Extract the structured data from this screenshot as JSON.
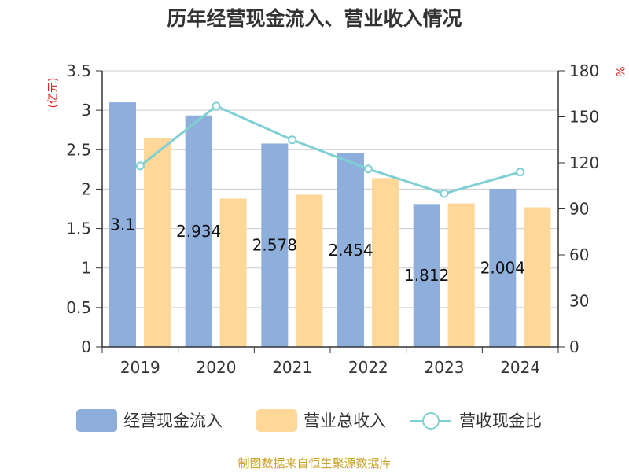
{
  "chart_data": {
    "type": "bar",
    "title": "历年经营现金流入、营业收入情况",
    "categories": [
      "2019",
      "2020",
      "2021",
      "2022",
      "2023",
      "2024"
    ],
    "y_left": {
      "unit": "(亿元)",
      "range": [
        0,
        3.5
      ],
      "ticks": [
        "0",
        "0.5",
        "1",
        "1.5",
        "2",
        "2.5",
        "3",
        "3.5"
      ]
    },
    "y_right": {
      "unit": "%",
      "range": [
        0,
        180
      ],
      "ticks": [
        "0",
        "30",
        "60",
        "90",
        "120",
        "150",
        "180"
      ]
    },
    "series": [
      {
        "name": "经营现金流入",
        "type": "bar",
        "axis": "left",
        "color": "#8eaedc",
        "values": [
          3.1,
          2.934,
          2.578,
          2.454,
          1.812,
          2.004
        ],
        "labels": [
          "3.1",
          "2.934",
          "2.578",
          "2.454",
          "1.812",
          "2.004"
        ]
      },
      {
        "name": "营业总收入",
        "type": "bar",
        "axis": "left",
        "color": "#fdd899",
        "values": [
          2.65,
          1.88,
          1.93,
          2.14,
          1.82,
          1.77
        ]
      },
      {
        "name": "营收现金比",
        "type": "line",
        "axis": "right",
        "color": "#7fd0d4",
        "values": [
          118,
          157,
          135,
          116,
          100,
          114
        ]
      }
    ],
    "grid": true,
    "legend_position": "bottom"
  },
  "source_text": "制图数据来自恒生聚源数据库"
}
